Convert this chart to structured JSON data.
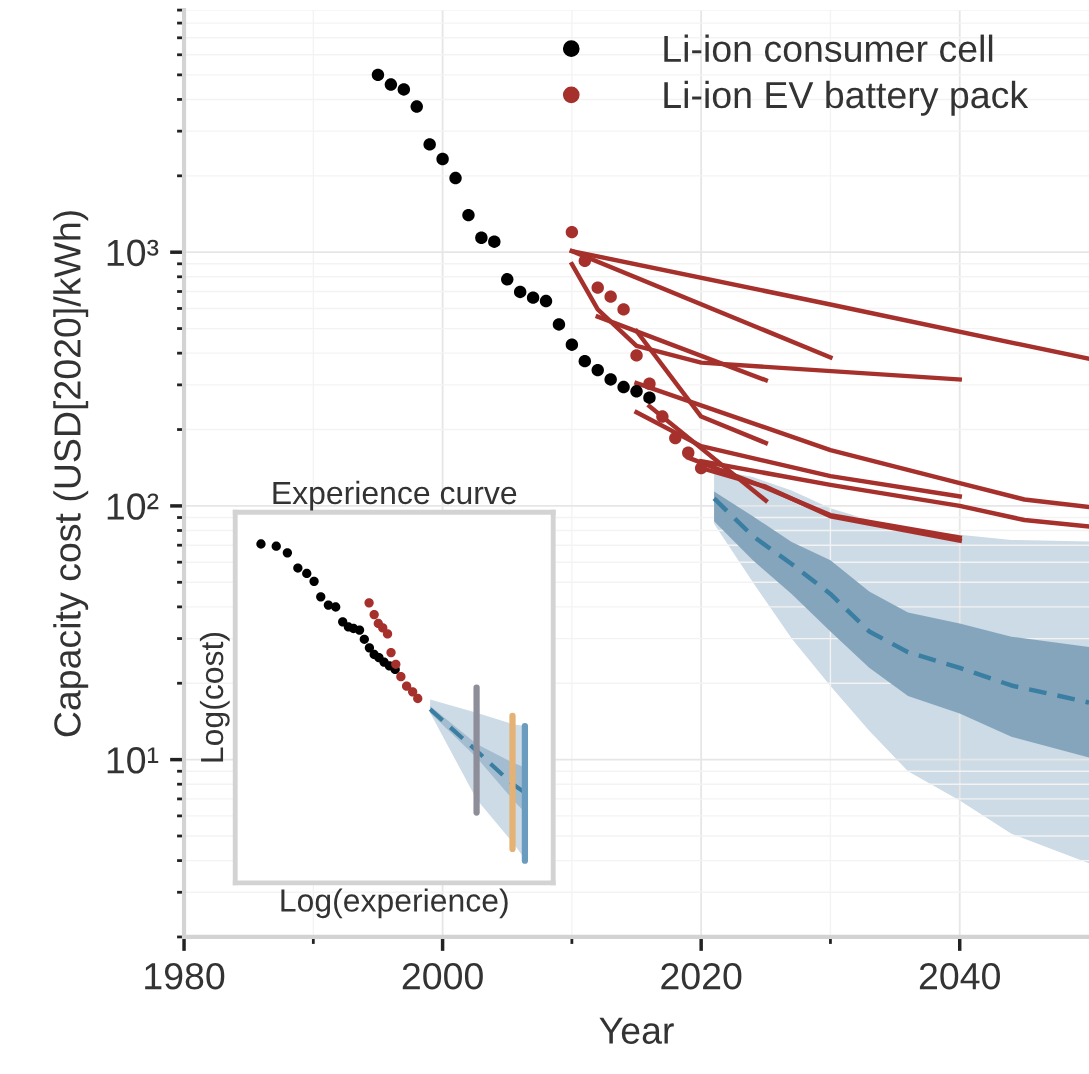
{
  "chart_data": [
    {
      "type": "line",
      "xlabel": "Year",
      "ylabel": "Capacity cost (USD[2020]/kWh)",
      "log": "y",
      "grid": true,
      "legend": "top right",
      "xlim": [
        1980,
        2050
      ],
      "xticks": [
        1980,
        {
          "value": 1990,
          "label": null
        },
        2000,
        {
          "value": 2010,
          "label": null
        },
        2020,
        {
          "value": 2030,
          "label": null
        },
        2040
      ],
      "ylim": [
        2,
        9000
      ],
      "yticks": [
        {
          "value": 2,
          "label": null
        },
        {
          "value": 3,
          "label": null
        },
        {
          "value": 4,
          "label": null
        },
        {
          "value": 5,
          "label": null
        },
        {
          "value": 6,
          "label": null
        },
        {
          "value": 7,
          "label": null
        },
        {
          "value": 8,
          "label": null
        },
        {
          "value": 9,
          "label": null
        },
        {
          "value": 10,
          "label": "10¹"
        },
        {
          "value": 20,
          "label": null
        },
        {
          "value": 30,
          "label": null
        },
        {
          "value": 40,
          "label": null
        },
        {
          "value": 50,
          "label": null
        },
        {
          "value": 60,
          "label": null
        },
        {
          "value": 70,
          "label": null
        },
        {
          "value": 80,
          "label": null
        },
        {
          "value": 90,
          "label": null
        },
        {
          "value": 100,
          "label": "10²"
        },
        {
          "value": 200,
          "label": null
        },
        {
          "value": 300,
          "label": null
        },
        {
          "value": 400,
          "label": null
        },
        {
          "value": 500,
          "label": null
        },
        {
          "value": 600,
          "label": null
        },
        {
          "value": 700,
          "label": null
        },
        {
          "value": 800,
          "label": null
        },
        {
          "value": 900,
          "label": null
        },
        {
          "value": 1000,
          "label": "10³"
        },
        {
          "value": 2000,
          "label": null
        },
        {
          "value": 3000,
          "label": null
        },
        {
          "value": 4000,
          "label": null
        },
        {
          "value": 5000,
          "label": null
        },
        {
          "value": 6000,
          "label": null
        },
        {
          "value": 7000,
          "label": null
        },
        {
          "value": 8000,
          "label": null
        },
        {
          "value": 9000,
          "label": null
        }
      ],
      "series": [
        {
          "color": "#ccdbe5",
          "x": [
            2021,
            2024,
            2027,
            2030,
            2033,
            2036,
            2040,
            2044,
            2050
          ],
          "values": [
            null,
            null,
            null,
            null,
            null,
            null,
            null,
            null,
            null
          ],
          "lower": [
            85,
            50,
            30,
            19.5,
            13,
            9,
            6.9,
            5.1,
            3.9
          ],
          "upper": [
            139,
            130,
            115,
            98,
            88,
            81,
            77,
            73.4,
            72.4
          ]
        },
        {
          "color": "#85a5bd",
          "x": [
            2021,
            2024,
            2027,
            2030,
            2033,
            2036,
            2040,
            2044,
            2050
          ],
          "values": [
            null,
            null,
            null,
            null,
            null,
            null,
            null,
            null,
            null
          ],
          "lower": [
            87,
            61,
            45,
            32,
            23,
            17.8,
            15.2,
            12.3,
            10.2
          ],
          "upper": [
            114,
            91,
            72,
            61,
            46,
            38,
            34.4,
            30.5,
            27.8
          ]
        },
        {
          "color": "#3a7ea1",
          "line_style": "dashed",
          "x": [
            2021,
            2024,
            2027,
            2030,
            2033,
            2036,
            2040,
            2044,
            2050
          ],
          "values": [
            107,
            76,
            59,
            45,
            32,
            26.5,
            23,
            19.6,
            16.8
          ]
        },
        {
          "color": "#a6302b",
          "x": [
            2010,
            2030,
            2050
          ],
          "values": [
            1010,
            622,
            380
          ]
        },
        {
          "color": "#a6302b",
          "x": [
            2010,
            2030
          ],
          "values": [
            1010,
            385
          ]
        },
        {
          "color": "#a6302b",
          "x": [
            2010,
            2012,
            2015,
            2020,
            2040
          ],
          "values": [
            897,
            595,
            427,
            367,
            315
          ]
        },
        {
          "color": "#a6302b",
          "x": [
            2012,
            2025
          ],
          "values": [
            557,
            313
          ]
        },
        {
          "color": "#a6302b",
          "x": [
            2015,
            2020,
            2025
          ],
          "values": [
            489,
            225,
            177
          ]
        },
        {
          "color": "#a6302b",
          "x": [
            2015,
            2030,
            2040,
            2045,
            2050
          ],
          "values": [
            305,
            166,
            123,
            106,
            99
          ]
        },
        {
          "color": "#a6302b",
          "x": [
            2016,
            2025
          ],
          "values": [
            247,
            105
          ]
        },
        {
          "color": "#a6302b",
          "x": [
            2015,
            2020,
            2030,
            2040
          ],
          "values": [
            234,
            172,
            131,
            109
          ]
        },
        {
          "color": "#a6302b",
          "x": [
            2020,
            2025,
            2030,
            2040
          ],
          "values": [
            141,
            119,
            91,
            73
          ]
        },
        {
          "color": "#a6302b",
          "x": [
            2019,
            2025,
            2030,
            2040
          ],
          "values": [
            155,
            118,
            92,
            75
          ]
        },
        {
          "color": "#a6302b",
          "x": [
            2020,
            2030,
            2040,
            2045,
            2050
          ],
          "values": [
            150,
            121,
            100,
            88,
            83
          ]
        },
        {
          "type": "scatter",
          "name": "Li-ion consumer cell",
          "color": "#000000",
          "marker": "circle",
          "x": [
            1995,
            1996,
            1997,
            1998,
            1999,
            2000,
            2001,
            2002,
            2003,
            2004,
            2005,
            2006,
            2007,
            2008,
            2009,
            2010,
            2011,
            2012,
            2013,
            2014,
            2015,
            2016
          ],
          "values": [
            5000,
            4580,
            4380,
            3750,
            2660,
            2330,
            1960,
            1400,
            1140,
            1100,
            782,
            697,
            662,
            642,
            519,
            432,
            372,
            343,
            315,
            294,
            283,
            267
          ]
        },
        {
          "type": "scatter",
          "name": "Li-ion EV battery pack",
          "color": "#a6302b",
          "marker": "circle",
          "x": [
            2010,
            2011,
            2012,
            2013,
            2014,
            2015,
            2016,
            2017,
            2018,
            2019,
            2020
          ],
          "values": [
            1200,
            925,
            725,
            668,
            595,
            392,
            303,
            225,
            185,
            162,
            141
          ]
        }
      ]
    },
    {
      "type": "other",
      "title": "Experience curve",
      "xlabel": "Log(experience)",
      "ylabel": "Log(cost)"
    }
  ]
}
